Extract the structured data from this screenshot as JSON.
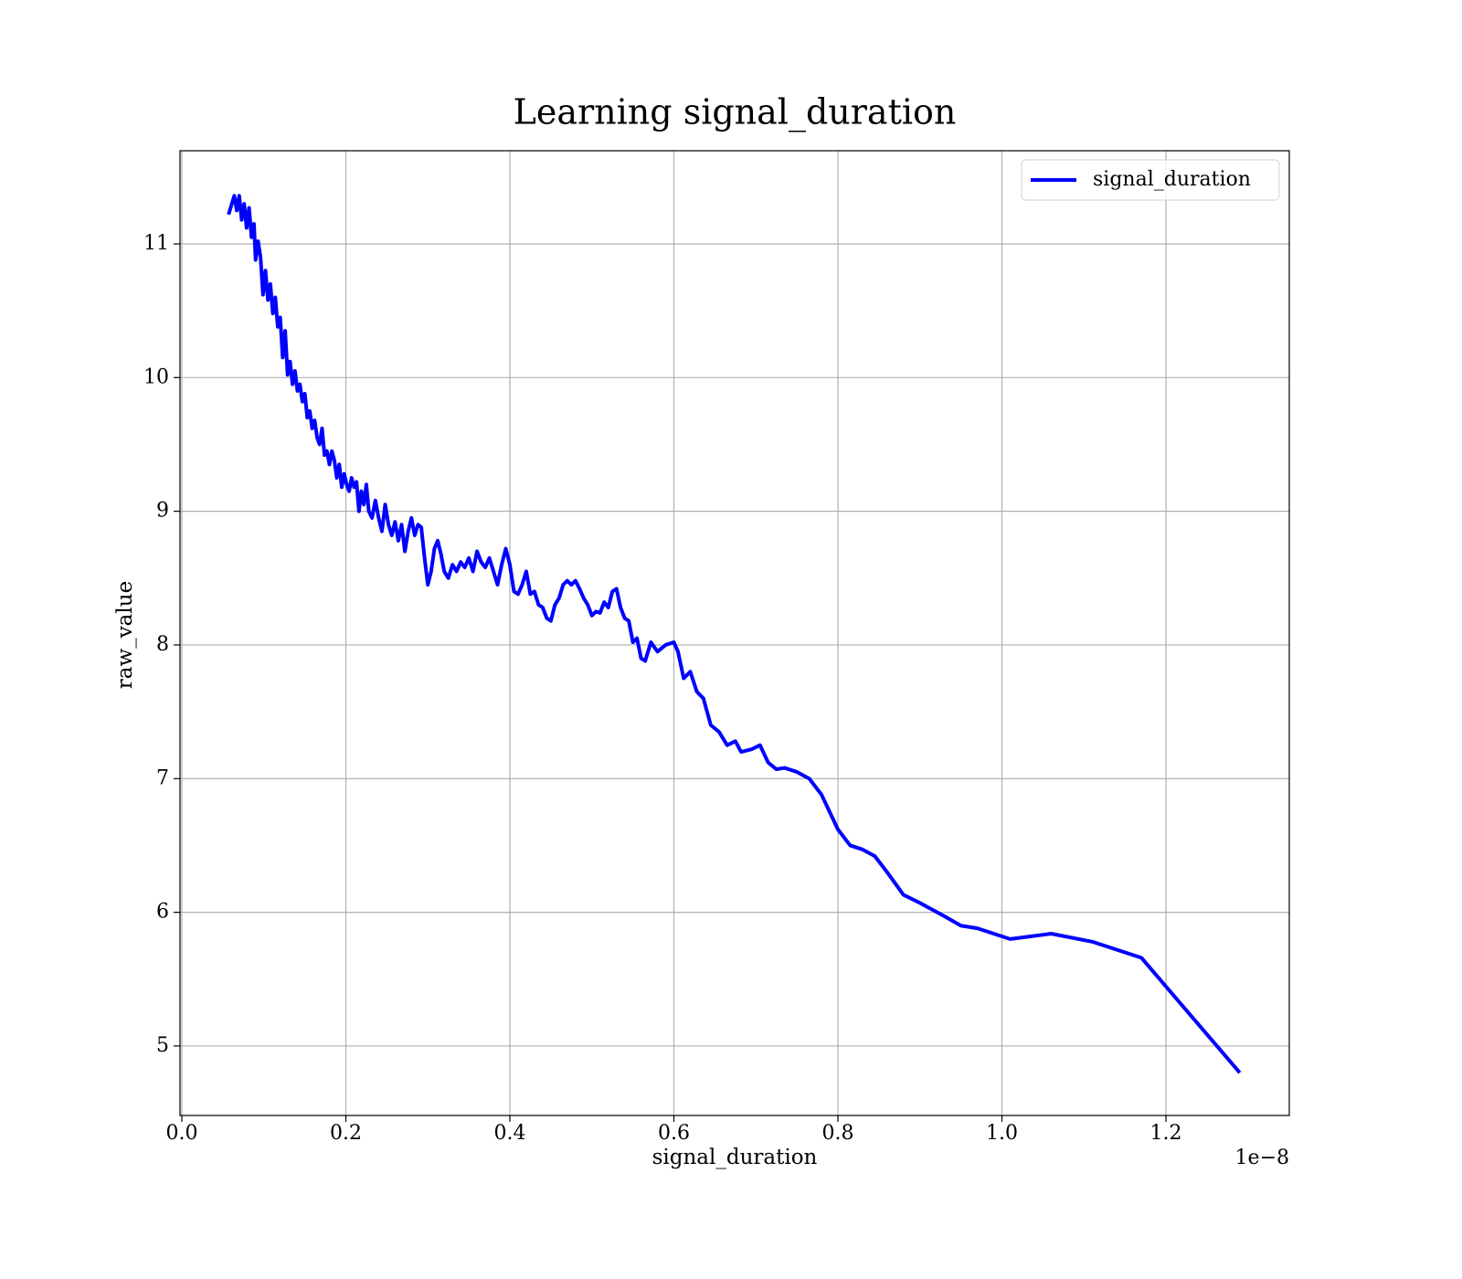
{
  "chart_data": {
    "type": "line",
    "title": "Learning signal_duration",
    "xlabel": "signal_duration",
    "ylabel": "raw_value",
    "x_offset_label": "1e−8",
    "grid": true,
    "legend": "upper right",
    "xlim": [
      -0.0022,
      1.3504
    ],
    "ylim": [
      4.48,
      11.697
    ],
    "xticks": [
      {
        "value": 0,
        "label": "0.0"
      },
      0.2,
      0.4,
      0.6,
      0.8,
      {
        "value": 1,
        "label": "1.0"
      },
      1.2
    ],
    "yticks": [
      5,
      6,
      7,
      8,
      9,
      10,
      11
    ],
    "x": [
      0.057,
      0.061,
      0.064,
      0.067,
      0.07,
      0.073,
      0.076,
      0.079,
      0.082,
      0.085,
      0.088,
      0.09,
      0.093,
      0.096,
      0.099,
      0.102,
      0.105,
      0.108,
      0.111,
      0.114,
      0.117,
      0.12,
      0.123,
      0.126,
      0.129,
      0.132,
      0.135,
      0.138,
      0.141,
      0.144,
      0.147,
      0.15,
      0.153,
      0.156,
      0.159,
      0.162,
      0.165,
      0.168,
      0.171,
      0.174,
      0.177,
      0.18,
      0.183,
      0.186,
      0.189,
      0.192,
      0.195,
      0.198,
      0.201,
      0.204,
      0.207,
      0.21,
      0.213,
      0.216,
      0.219,
      0.222,
      0.225,
      0.228,
      0.232,
      0.236,
      0.24,
      0.244,
      0.248,
      0.252,
      0.256,
      0.26,
      0.264,
      0.268,
      0.272,
      0.276,
      0.28,
      0.284,
      0.288,
      0.292,
      0.296,
      0.3,
      0.304,
      0.308,
      0.312,
      0.316,
      0.32,
      0.325,
      0.33,
      0.335,
      0.34,
      0.345,
      0.35,
      0.355,
      0.36,
      0.365,
      0.37,
      0.375,
      0.38,
      0.385,
      0.39,
      0.395,
      0.4,
      0.405,
      0.41,
      0.415,
      0.42,
      0.425,
      0.43,
      0.435,
      0.44,
      0.445,
      0.45,
      0.455,
      0.46,
      0.465,
      0.47,
      0.475,
      0.48,
      0.485,
      0.49,
      0.495,
      0.5,
      0.505,
      0.51,
      0.515,
      0.52,
      0.525,
      0.53,
      0.535,
      0.54,
      0.545,
      0.55,
      0.555,
      0.56,
      0.565,
      0.572,
      0.58,
      0.59,
      0.6,
      0.605,
      0.612,
      0.62,
      0.628,
      0.636,
      0.645,
      0.655,
      0.665,
      0.675,
      0.682,
      0.695,
      0.705,
      0.715,
      0.725,
      0.735,
      0.75,
      0.765,
      0.78,
      0.8,
      0.815,
      0.83,
      0.845,
      0.86,
      0.88,
      0.9,
      0.93,
      0.95,
      0.97,
      1.01,
      1.06,
      1.11,
      1.17,
      1.29
    ],
    "series": [
      {
        "name": "signal_duration",
        "color": "#0000ff",
        "values": [
          11.22,
          11.3,
          11.36,
          11.25,
          11.36,
          11.18,
          11.3,
          11.12,
          11.27,
          11.05,
          11.15,
          10.88,
          11.02,
          10.9,
          10.62,
          10.8,
          10.58,
          10.7,
          10.48,
          10.6,
          10.38,
          10.45,
          10.15,
          10.35,
          10.02,
          10.12,
          9.95,
          10.05,
          9.9,
          9.95,
          9.82,
          9.88,
          9.7,
          9.75,
          9.62,
          9.68,
          9.55,
          9.5,
          9.62,
          9.42,
          9.45,
          9.35,
          9.45,
          9.38,
          9.25,
          9.35,
          9.18,
          9.28,
          9.2,
          9.15,
          9.25,
          9.18,
          9.22,
          9.0,
          9.15,
          9.05,
          9.2,
          9.0,
          8.95,
          9.08,
          8.95,
          8.85,
          9.05,
          8.9,
          8.82,
          8.92,
          8.78,
          8.9,
          8.7,
          8.85,
          8.95,
          8.82,
          8.9,
          8.88,
          8.65,
          8.45,
          8.55,
          8.72,
          8.78,
          8.68,
          8.55,
          8.5,
          8.6,
          8.55,
          8.62,
          8.58,
          8.65,
          8.55,
          8.7,
          8.62,
          8.58,
          8.65,
          8.55,
          8.45,
          8.6,
          8.72,
          8.6,
          8.4,
          8.38,
          8.45,
          8.55,
          8.38,
          8.4,
          8.3,
          8.28,
          8.2,
          8.18,
          8.3,
          8.35,
          8.45,
          8.48,
          8.45,
          8.48,
          8.42,
          8.35,
          8.3,
          8.22,
          8.25,
          8.24,
          8.32,
          8.28,
          8.4,
          8.42,
          8.28,
          8.2,
          8.18,
          8.02,
          8.05,
          7.9,
          7.88,
          8.02,
          7.95,
          8.0,
          8.02,
          7.95,
          7.75,
          7.8,
          7.65,
          7.6,
          7.4,
          7.35,
          7.25,
          7.28,
          7.2,
          7.22,
          7.25,
          7.12,
          7.07,
          7.08,
          7.05,
          7.0,
          6.88,
          6.62,
          6.5,
          6.47,
          6.42,
          6.3,
          6.13,
          6.07,
          5.97,
          5.9,
          5.88,
          5.8,
          5.84,
          5.78,
          5.66,
          4.8
        ]
      }
    ]
  }
}
